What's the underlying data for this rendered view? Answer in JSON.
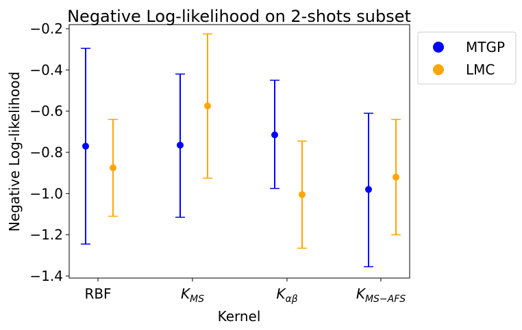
{
  "chart_data": {
    "type": "scatter",
    "title": "Negative Log-likelihood on 2-shots subset",
    "xlabel": "Kernel",
    "ylabel": "Negative Log-likelihood",
    "categories": [
      {
        "base": "RBF",
        "sub": ""
      },
      {
        "base": "K",
        "sub": "MS"
      },
      {
        "base": "K",
        "sub": "αβ"
      },
      {
        "base": "K",
        "sub": "MS−AFS"
      }
    ],
    "yticks": [
      "−1.4",
      "−1.2",
      "−1.0",
      "−0.8",
      "−0.6",
      "−0.4",
      "−0.2"
    ],
    "ytick_values": [
      -1.4,
      -1.2,
      -1.0,
      -0.8,
      -0.6,
      -0.4,
      -0.2
    ],
    "ylim": [
      -1.41,
      -0.18
    ],
    "grid": false,
    "legend_position": "outside-top-right",
    "series": [
      {
        "name": "MTGP",
        "color": "#0000ff",
        "values": [
          -0.77,
          -0.765,
          -0.715,
          -0.98
        ],
        "err_low": [
          -1.245,
          -1.115,
          -0.975,
          -1.355
        ],
        "err_high": [
          -0.295,
          -0.42,
          -0.45,
          -0.61
        ]
      },
      {
        "name": "LMC",
        "color": "#ffa500",
        "values": [
          -0.875,
          -0.575,
          -1.005,
          -0.92
        ],
        "err_low": [
          -1.11,
          -0.925,
          -1.265,
          -1.2
        ],
        "err_high": [
          -0.64,
          -0.225,
          -0.745,
          -0.64
        ]
      }
    ]
  }
}
